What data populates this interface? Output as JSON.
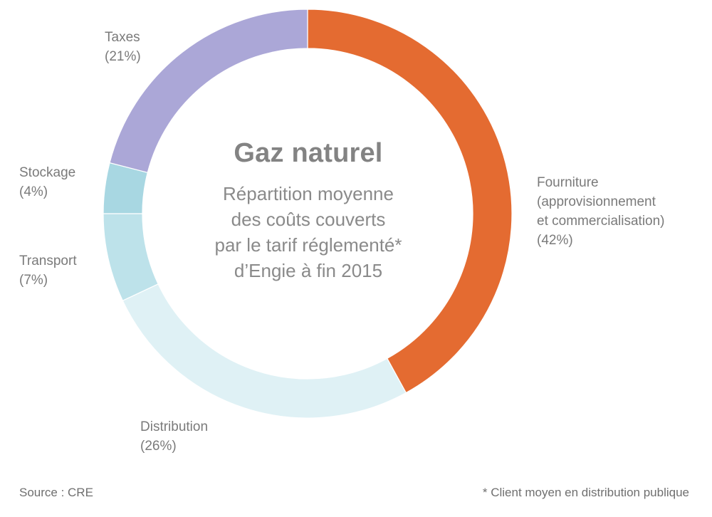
{
  "chart_data": {
    "type": "pie",
    "title": "Gaz naturel",
    "subtitle_lines": [
      "Répartition moyenne",
      "des coûts couverts",
      "par le tarif réglementé*",
      "d’Engie à fin 2015"
    ],
    "slices": [
      {
        "name": "Fourniture",
        "label_lines": [
          "Fourniture",
          "(approvisionnement",
          "et commercialisation)"
        ],
        "value_label": "(42%)",
        "value": 42,
        "color": "#e46b31"
      },
      {
        "name": "Distribution",
        "label_lines": [
          "Distribution"
        ],
        "value_label": "(26%)",
        "value": 26,
        "color": "#dff1f5"
      },
      {
        "name": "Transport",
        "label_lines": [
          "Transport"
        ],
        "value_label": "(7%)",
        "value": 7,
        "color": "#bde2ea"
      },
      {
        "name": "Stockage",
        "label_lines": [
          "Stockage"
        ],
        "value_label": "(4%)",
        "value": 4,
        "color": "#a8d7e2"
      },
      {
        "name": "Taxes",
        "label_lines": [
          "Taxes"
        ],
        "value_label": "(21%)",
        "value": 21,
        "color": "#aba7d7"
      }
    ]
  },
  "footer": {
    "source": "Source : CRE",
    "note": "* Client moyen en distribution publique"
  }
}
